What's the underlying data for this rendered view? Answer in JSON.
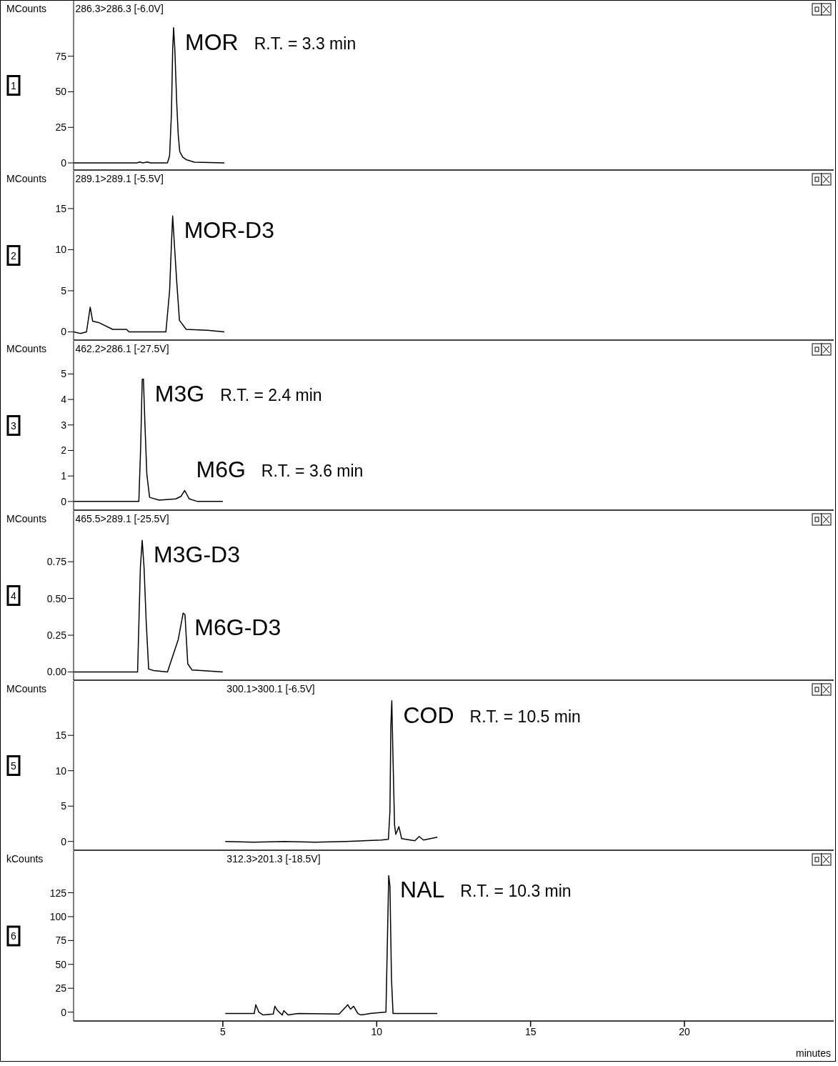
{
  "chart_data": [
    {
      "type": "line",
      "title": "1",
      "subtitle": "286.3>286.3 [-6.0V]",
      "ylabel": "MCounts",
      "color": "#000000",
      "xlim": [
        0.15,
        24.85
      ],
      "ylim": [
        -5,
        114
      ],
      "yticks": [
        0,
        25,
        50,
        75
      ],
      "tick_labels": "y",
      "x": [
        0.16,
        2.2,
        2.3,
        2.4,
        2.55,
        2.65,
        3.2,
        3.27,
        3.33,
        3.37,
        3.4,
        3.44,
        3.5,
        3.55,
        3.6,
        3.7,
        3.81,
        4.08,
        5.05
      ],
      "values": [
        0,
        0,
        0.6,
        0,
        0.6,
        0,
        0,
        5,
        35,
        80,
        95,
        80,
        43,
        20,
        8,
        4,
        2.3,
        0.5,
        0
      ],
      "annotations": [
        {
          "text": "MOR",
          "x": 3.4,
          "y": 95
        },
        "R.T. = 3.3 min"
      ]
    },
    {
      "type": "line",
      "title": "2",
      "subtitle": "289.1>289.1 [-5.5V]",
      "ylabel": "MCounts",
      "color": "#000000",
      "xlim": [
        0.15,
        24.85
      ],
      "ylim": [
        -1,
        19.6
      ],
      "yticks": [
        0,
        5,
        10,
        15
      ],
      "tick_labels": "y",
      "x": [
        0.16,
        0.37,
        0.57,
        0.69,
        0.77,
        0.99,
        1.42,
        1.87,
        1.95,
        3.15,
        3.27,
        3.33,
        3.37,
        3.42,
        3.5,
        3.59,
        3.81,
        4.5,
        5.05
      ],
      "values": [
        0,
        -0.2,
        0,
        3,
        1.3,
        1.1,
        0.3,
        0.3,
        0,
        0,
        5,
        10.7,
        14.1,
        11,
        6.2,
        1.4,
        0.3,
        0.2,
        0
      ],
      "annotations": [
        {
          "text": "MOR-D3",
          "x": 3.37,
          "y": 14.1
        }
      ]
    },
    {
      "type": "line",
      "title": "3",
      "subtitle": "462.2>286.1 [-27.5V]",
      "ylabel": "MCounts",
      "color": "#000000",
      "xlim": [
        0.15,
        24.85
      ],
      "ylim": [
        -0.34,
        6.3
      ],
      "yticks": [
        0,
        1,
        2,
        3,
        4,
        5
      ],
      "tick_labels": "y",
      "x": [
        0.16,
        2.27,
        2.33,
        2.38,
        2.42,
        2.47,
        2.53,
        2.62,
        2.93,
        3.47,
        3.64,
        3.76,
        3.91,
        4.18,
        5.0
      ],
      "values": [
        0,
        0,
        2.13,
        4.79,
        4.8,
        2.98,
        1.07,
        0.16,
        0.05,
        0.1,
        0.2,
        0.43,
        0.1,
        0,
        0
      ],
      "annotations": [
        {
          "text": "M3G",
          "x": 2.42,
          "y": 4.8
        },
        "R.T. = 2.4 min",
        {
          "text": "M6G",
          "x": 3.76,
          "y": 0.43
        },
        "R.T. = 3.6 min"
      ]
    },
    {
      "type": "line",
      "title": "4",
      "subtitle": "465.5>289.1 [-25.5V]",
      "ylabel": "MCounts",
      "color": "#000000",
      "xlim": [
        0.15,
        24.85
      ],
      "ylim": [
        -0.056,
        1.096
      ],
      "yticks": [
        {
          "value": 0,
          "label": "0.00"
        },
        {
          "value": 0.25,
          "label": "0.25"
        },
        {
          "value": 0.5,
          "label": "0.50"
        },
        {
          "value": 0.75,
          "label": "0.75"
        }
      ],
      "tick_labels": "y",
      "x": [
        0.16,
        2.23,
        2.32,
        2.38,
        2.44,
        2.51,
        2.59,
        2.75,
        3.2,
        3.55,
        3.71,
        3.77,
        3.86,
        4.0,
        4.3,
        5.0
      ],
      "values": [
        0,
        0,
        0.71,
        0.895,
        0.71,
        0.34,
        0.02,
        0.01,
        0,
        0.22,
        0.4,
        0.39,
        0.056,
        0.013,
        0.01,
        0
      ],
      "annotations": [
        {
          "text": "M3G-D3",
          "x": 2.38,
          "y": 0.895
        },
        {
          "text": "M6G-D3",
          "x": 3.71,
          "y": 0.4
        }
      ]
    },
    {
      "type": "line",
      "title": "5",
      "subtitle": "300.1>300.1 [-6.5V]",
      "ylabel": "MCounts",
      "color": "#000000",
      "xlim": [
        0.15,
        24.85
      ],
      "ylim": [
        -1.24,
        22.7
      ],
      "yticks": [
        0,
        5,
        10,
        15
      ],
      "tick_labels": "y",
      "x": [
        5.08,
        6.0,
        7.0,
        8.0,
        9.0,
        10.14,
        10.38,
        10.43,
        10.46,
        10.49,
        10.53,
        10.58,
        10.62,
        10.72,
        10.81,
        11.24,
        11.38,
        11.52,
        11.97
      ],
      "values": [
        0,
        -0.1,
        0,
        -0.1,
        0,
        0.2,
        0.3,
        4.3,
        16.4,
        19.9,
        11.7,
        2.3,
        1.0,
        2.1,
        0.4,
        0.1,
        0.7,
        0.2,
        0.6
      ],
      "annotations": [
        {
          "text": "COD",
          "x": 10.49,
          "y": 19.9
        },
        "R.T. = 10.5 min"
      ]
    },
    {
      "type": "line",
      "title": "6",
      "subtitle": "312.3>201.3 [-18.5V]",
      "ylabel": "kCounts",
      "xlabel": "minutes",
      "color": "#000000",
      "xlim": [
        0.15,
        24.85
      ],
      "ylim": [
        -9.3,
        168.8
      ],
      "xticks": [
        5,
        10,
        15,
        20
      ],
      "yticks": [
        0,
        25,
        50,
        75,
        100,
        125
      ],
      "x": [
        5.08,
        6.02,
        6.07,
        6.17,
        6.31,
        6.64,
        6.69,
        6.78,
        6.93,
        6.98,
        7.12,
        7.45,
        8.78,
        9.06,
        9.15,
        9.25,
        9.39,
        9.49,
        9.78,
        10.3,
        10.34,
        10.39,
        10.43,
        10.48,
        10.53,
        11.97
      ],
      "values": [
        -1.5,
        -1.5,
        7.7,
        0,
        -3,
        -2,
        6.2,
        1.5,
        -3,
        1.5,
        -3,
        -1.5,
        -2,
        7.7,
        3,
        6.2,
        -1.5,
        -3,
        -1.5,
        0,
        63,
        143,
        132,
        35,
        -1.5,
        -1.5
      ],
      "annotations": [
        {
          "text": "NAL",
          "x": 10.39,
          "y": 143
        },
        "R.T. = 10.3 min"
      ]
    }
  ]
}
